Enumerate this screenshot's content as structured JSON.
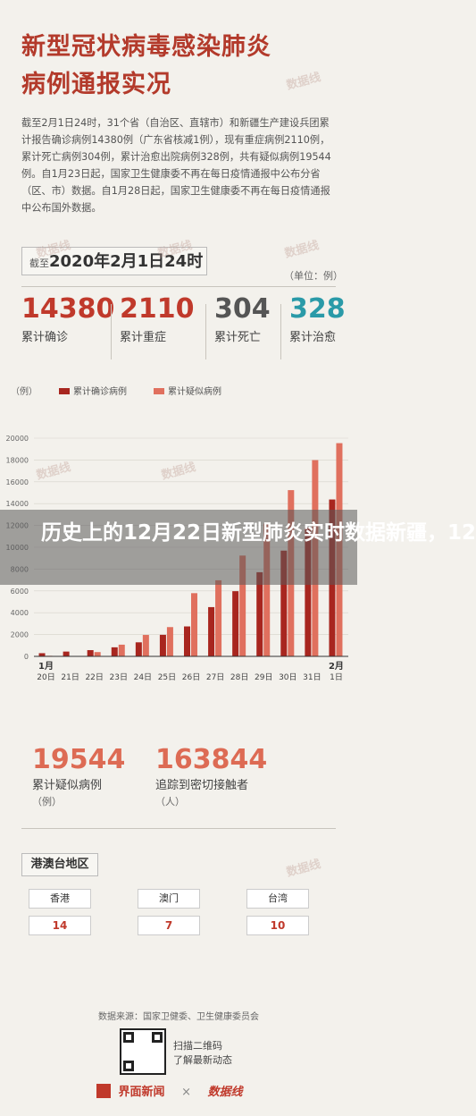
{
  "header": {
    "title_line1": "新型冠状病毒感染肺炎",
    "title_line2": "病例通报实况",
    "description": "截至2月1日24时，31个省（自治区、直辖市）和新疆生产建设兵团累计报告确诊病例14380例（广东省核减1例），现有重症病例2110例，累计死亡病例304例，累计治愈出院病例328例，共有疑似病例19544例。自1月23日起，国家卫生健康委不再在每日疫情通报中公布分省（区、市）数据。自1月28日起，国家卫生健康委不再在每日疫情通报中公布国外数据。"
  },
  "date_box": {
    "prefix": "截至",
    "date": "2020年2月1日24时"
  },
  "unit_label": "（单位：例）",
  "stats": [
    {
      "value": "14380",
      "label": "累计确诊",
      "color": "#c0392b"
    },
    {
      "value": "2110",
      "label": "累计重症",
      "color": "#c0392b"
    },
    {
      "value": "304",
      "label": "累计死亡",
      "color": "#555555"
    },
    {
      "value": "328",
      "label": "累计治愈",
      "color": "#2a9aa8"
    }
  ],
  "chart_data": {
    "type": "bar",
    "unit": "（例）",
    "month_start": "1月",
    "month_end": "2月",
    "categories": [
      "20日",
      "21日",
      "22日",
      "23日",
      "24日",
      "25日",
      "26日",
      "27日",
      "28日",
      "29日",
      "30日",
      "31日",
      "1日"
    ],
    "ylim": [
      0,
      20000
    ],
    "yticks": [
      "0",
      "2000",
      "4000",
      "6000",
      "8000",
      "10000",
      "12000",
      "14000",
      "16000",
      "18000",
      "20000"
    ],
    "series": [
      {
        "name": "累计确诊病例",
        "color": "#a8261f",
        "values": [
          291,
          440,
          571,
          830,
          1287,
          1975,
          2744,
          4515,
          5974,
          7711,
          9692,
          11791,
          14380
        ]
      },
      {
        "name": "累计疑似病例",
        "color": "#e0705e",
        "values": [
          54,
          37,
          393,
          1072,
          1965,
          2684,
          5794,
          6973,
          9239,
          12167,
          15238,
          17988,
          19544
        ]
      }
    ],
    "legend_position": "top"
  },
  "big_stats": [
    {
      "value": "19544",
      "label": "累计疑似病例",
      "unit": "（例）"
    },
    {
      "value": "163844",
      "label": "追踪到密切接触者",
      "unit": "（人）"
    }
  ],
  "region": {
    "title": "港澳台地区",
    "items": [
      {
        "name": "香港",
        "value": "14"
      },
      {
        "name": "澳门",
        "value": "7"
      },
      {
        "name": "台湾",
        "value": "10"
      }
    ]
  },
  "source": "数据来源：国家卫健委、卫生健康委员会",
  "qr_text_1": "扫描二维码",
  "qr_text_2": "了解最新动态",
  "footer": {
    "brand1": "界面新闻",
    "times": "×",
    "brand2": "数据线"
  },
  "overlay": {
    "headline": "历史上的12月22日新型肺炎实时数据新疆，12"
  },
  "watermark": "数据线"
}
